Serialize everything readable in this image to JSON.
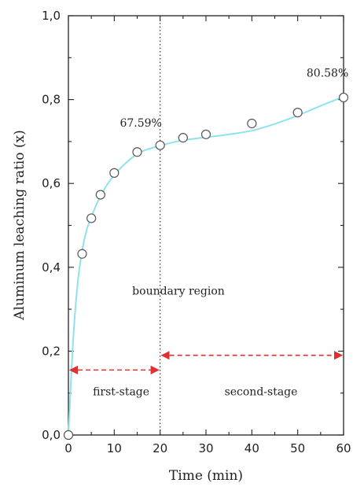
{
  "chart_data": {
    "type": "scatter",
    "title": "",
    "xlabel": "Time (min)",
    "ylabel": "Aluminum leaching ratio (x)",
    "xlim": [
      0,
      60
    ],
    "ylim": [
      0,
      1.0
    ],
    "x_ticks": [
      "0",
      "10",
      "20",
      "30",
      "40",
      "50",
      "60"
    ],
    "y_ticks": [
      "0,0",
      "0,2",
      "0,4",
      "0,6",
      "0,8",
      "1,0"
    ],
    "x_tick_values": [
      0,
      10,
      20,
      30,
      40,
      50,
      60
    ],
    "y_tick_values": [
      0,
      0.2,
      0.4,
      0.6,
      0.8,
      1.0
    ],
    "grid": false,
    "series": [
      {
        "marker": "open-circle",
        "x": [
          0,
          3,
          5,
          7,
          10,
          15,
          20,
          25,
          30,
          40,
          50,
          60
        ],
        "y": [
          0.0,
          0.432,
          0.517,
          0.573,
          0.625,
          0.675,
          0.691,
          0.709,
          0.717,
          0.743,
          0.769,
          0.805
        ]
      },
      {
        "type": "line",
        "color": "#8ee3ea",
        "x": [
          0,
          1,
          2,
          3,
          4,
          5,
          7,
          10,
          15,
          20,
          25,
          30,
          35,
          40,
          45,
          50,
          55,
          60
        ],
        "y": [
          0.0,
          0.22,
          0.36,
          0.44,
          0.49,
          0.52,
          0.57,
          0.62,
          0.67,
          0.69,
          0.703,
          0.71,
          0.717,
          0.726,
          0.742,
          0.762,
          0.785,
          0.807
        ]
      }
    ],
    "annotations": [
      {
        "text": "67.59%",
        "x": 15.8,
        "y": 0.735
      },
      {
        "text": "80.58%",
        "x": 56.5,
        "y": 0.855
      },
      {
        "text": "boundary region",
        "x": 24,
        "y": 0.335
      },
      {
        "text": "first-stage",
        "x": 11.5,
        "y": 0.095
      },
      {
        "text": "second-stage",
        "x": 42,
        "y": 0.095
      }
    ],
    "boundary_x": 20,
    "arrows": [
      {
        "label": "first-stage",
        "x_from": 0,
        "x_to": 20,
        "y": 0.155,
        "color": "#e03030"
      },
      {
        "label": "second-stage",
        "x_from": 20,
        "x_to": 60,
        "y": 0.19,
        "color": "#e03030"
      }
    ]
  }
}
